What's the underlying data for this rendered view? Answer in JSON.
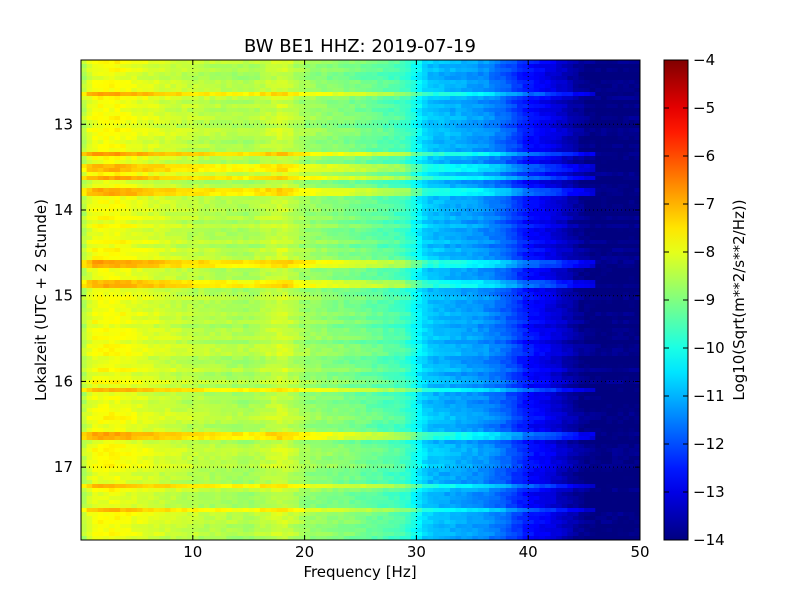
{
  "chart_data": {
    "type": "heatmap",
    "title": "BW BE1 HHZ: 2019-07-19",
    "xlabel": "Frequency [Hz]",
    "ylabel": "Lokalzeit (UTC + 2 Stunde)",
    "xlim": [
      0,
      50
    ],
    "ylim": [
      12.25,
      17.85
    ],
    "y_inverted": true,
    "x_ticks": [
      10,
      20,
      30,
      40,
      50
    ],
    "x_tick_labels": [
      "10",
      "20",
      "30",
      "40",
      "50"
    ],
    "y_ticks": [
      13,
      14,
      15,
      16,
      17
    ],
    "y_tick_labels": [
      "13",
      "14",
      "15",
      "16",
      "17"
    ],
    "grid": true,
    "colormap": "jet",
    "colorbar": {
      "label": "Log10(Sqrt(m**2/s**2/Hz))",
      "min": -14,
      "max": -4,
      "ticks": [
        -4,
        -5,
        -6,
        -7,
        -8,
        -9,
        -10,
        -11,
        -12,
        -13,
        -14
      ],
      "tick_labels": [
        "−4",
        "−5",
        "−6",
        "−7",
        "−8",
        "−9",
        "−10",
        "−11",
        "−12",
        "−13",
        "−14"
      ]
    },
    "spectrum_profile": {
      "frequency_hz": [
        0,
        1,
        3,
        6,
        10,
        15,
        18,
        20,
        25,
        29,
        31,
        33,
        36,
        38,
        40,
        42,
        44,
        45,
        46,
        50
      ],
      "log10_amplitude": [
        -8.6,
        -7.9,
        -7.8,
        -8.1,
        -8.4,
        -8.6,
        -8.2,
        -8.7,
        -9.1,
        -9.6,
        -10.8,
        -11.0,
        -11.3,
        -11.8,
        -12.6,
        -13.0,
        -13.6,
        -13.9,
        -14.0,
        -14.0
      ]
    },
    "bright_bands_local_hour": [
      12.65,
      13.35,
      13.5,
      13.62,
      13.8,
      14.62,
      14.85,
      16.1,
      16.65,
      17.22,
      17.5
    ]
  }
}
